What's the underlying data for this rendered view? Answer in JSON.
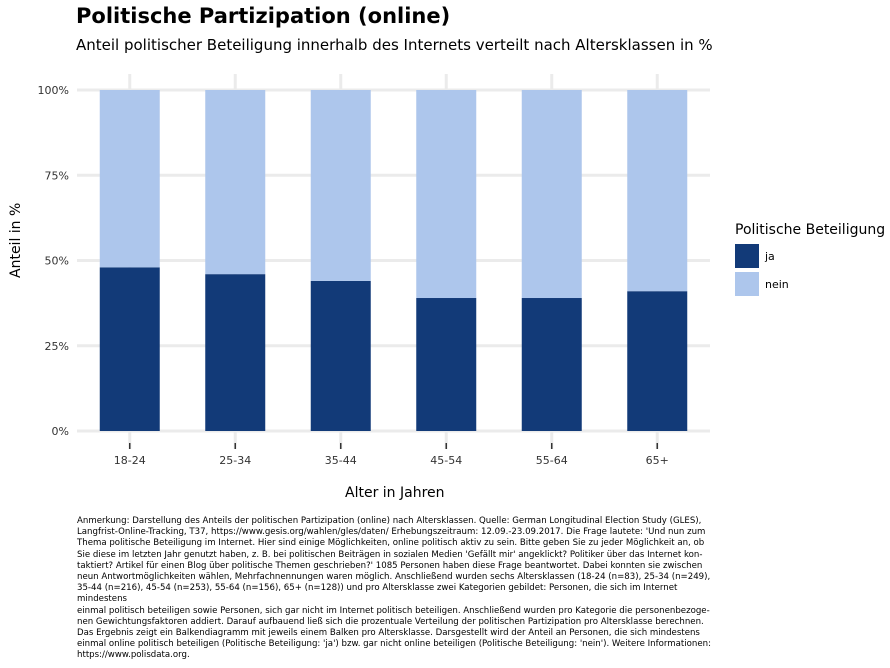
{
  "title": "Politische Partizipation (online)",
  "subtitle": "Anteil politischer Beteiligung innerhalb des Internets verteilt nach Altersklassen in %",
  "note": "Anmerkung: Darstellung des Anteils der politischen Partizipation (online) nach Altersklassen. Quelle: German Longitudinal Election Study (GLES),\nLangfrist-Online-Tracking, T37, https://www.gesis.org/wahlen/gles/daten/ Erhebungszeitraum: 12.09.-23.09.2017. Die Frage lautete: 'Und nun zum\nThema politische Beteiligung im Internet. Hier sind einige Möglichkeiten, online politisch aktiv zu sein. Bitte geben Sie zu jeder Möglichkeit an, ob\nSie diese im letzten Jahr genutzt haben, z. B. bei politischen Beiträgen in sozialen Medien 'Gefällt mir' angeklickt? Politiker über das Internet kon-\ntaktiert? Artikel für einen Blog über politische Themen geschrieben?' 1085 Personen haben diese Frage beantwortet. Dabei konnten sie zwischen\nneun Antwortmöglichkeiten wählen, Mehrfachnennungen waren möglich. Anschließend wurden sechs Altersklassen (18-24 (n=83), 25-34 (n=249),\n35-44 (n=216), 45-54 (n=253), 55-64 (n=156), 65+ (n=128)) und pro Altersklasse zwei Kategorien gebildet: Personen, die sich im Internet mindestens\neinmal politisch beteiligen sowie Personen, sich gar nicht im Internet politisch beteiligen. Anschließend wurden pro Kategorie die personenbezoge-\nnen Gewichtungsfaktoren addiert. Darauf aufbauend ließ sich die prozentuale Verteilung der politischen Partizipation pro Altersklasse berechnen.\nDas Ergebnis zeigt ein Balkendiagramm mit jeweils einem Balken pro Altersklasse. Darsgestellt wird der Anteil an Personen, die sich mindestens\neinmal online politisch beteiligen (Politische Beteiligung: 'ja') bzw. gar nicht online beteiligen (Politische Beteiligung: 'nein'). Weitere Informationen:\nhttps://www.polisdata.org.",
  "colors": {
    "ja": "#123a78",
    "nein": "#adc6ec",
    "grid": "#ebebeb"
  },
  "chart_data": {
    "type": "bar",
    "stacked": true,
    "categories": [
      "18-24",
      "25-34",
      "35-44",
      "45-54",
      "55-64",
      "65+"
    ],
    "series": [
      {
        "name": "ja",
        "values": [
          48,
          46,
          44,
          39,
          39,
          41
        ]
      },
      {
        "name": "nein",
        "values": [
          52,
          54,
          56,
          61,
          61,
          59
        ]
      }
    ],
    "xlabel": "Alter in Jahren",
    "ylabel": "Anteil in %",
    "yticks": [
      "0%",
      "25%",
      "50%",
      "75%",
      "100%"
    ],
    "ylim": [
      0,
      100
    ],
    "legend_title": "Politische Beteiligung",
    "legend_position": "right",
    "grid": true
  }
}
